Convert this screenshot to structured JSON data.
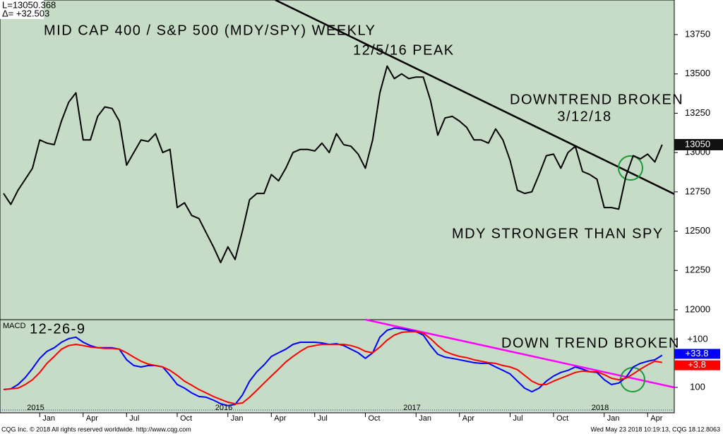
{
  "header": {
    "last": "L=13050.368",
    "delta": "Δ=  +32.503"
  },
  "footer": {
    "left": "CQG Inc. © 2018 All rights reserved worldwide. http://www.cqg.com",
    "right": "Wed May 23 2018 10:19:13, CQG 18.12.8063"
  },
  "chart_data": [
    {
      "type": "line",
      "title": "MID CAP 400 / S&P 500 (MDY/SPY) WEEKLY",
      "annotations": [
        "12/5/16 PEAK",
        "DOWNTREND BROKEN",
        "3/12/18",
        "MDY STRONGER THAN SPY"
      ],
      "ylim": [
        11937,
        13970
      ],
      "yticks": [
        12000,
        12250,
        12500,
        12750,
        13000,
        13250,
        13500,
        13750
      ],
      "grid": false,
      "series": [
        {
          "color": "#000000",
          "values": [
            12740,
            12670,
            12760,
            12830,
            12900,
            13080,
            13060,
            13050,
            13200,
            13320,
            13380,
            13080,
            13080,
            13230,
            13290,
            13280,
            13200,
            12920,
            13000,
            13080,
            13070,
            13120,
            13000,
            13020,
            12650,
            12680,
            12600,
            12580,
            12490,
            12400,
            12300,
            12400,
            12320,
            12500,
            12700,
            12740,
            12740,
            12860,
            12820,
            12900,
            13000,
            13020,
            13020,
            13010,
            13060,
            13000,
            13120,
            13050,
            13040,
            12990,
            12900,
            13080,
            13380,
            13550,
            13470,
            13500,
            13470,
            13480,
            13480,
            13330,
            13110,
            13220,
            13230,
            13200,
            13160,
            13080,
            13080,
            13060,
            13150,
            13080,
            12950,
            12760,
            12740,
            12750,
            12860,
            12980,
            12990,
            12900,
            13000,
            13040,
            12880,
            12860,
            12830,
            12650,
            12650,
            12640,
            12850,
            12980,
            12960,
            12990,
            12940,
            13050
          ]
        }
      ]
    },
    {
      "type": "line",
      "title": "MACD",
      "subtitle": "12-26-9",
      "annotations": [
        "DOWN TREND BROKEN"
      ],
      "categories": [
        null,
        null,
        null,
        null,
        null,
        "Jan",
        null,
        null,
        null,
        null,
        null,
        "Apr",
        null,
        null,
        null,
        null,
        null,
        "Jul",
        null,
        null,
        null,
        null,
        null,
        null,
        "Oct",
        null,
        null,
        null,
        null,
        null,
        null,
        "Jan",
        null,
        null,
        null,
        null,
        null,
        "Apr",
        null,
        null,
        null,
        null,
        null,
        "Jul",
        null,
        null,
        null,
        null,
        null,
        null,
        "Oct",
        null,
        null,
        null,
        null,
        null,
        null,
        "Jan",
        null,
        null,
        null,
        null,
        null,
        "Apr",
        null,
        null,
        null,
        null,
        null,
        null,
        "Jul",
        null,
        null,
        null,
        null,
        null,
        "Oct",
        null,
        null,
        null,
        null,
        null,
        null,
        "Jan",
        null,
        null,
        null,
        null,
        null,
        "Apr",
        null,
        null
      ],
      "years": [
        null,
        null,
        null,
        null,
        null,
        "2015",
        null,
        null,
        null,
        null,
        null,
        null,
        null,
        null,
        null,
        null,
        null,
        null,
        null,
        null,
        null,
        null,
        null,
        null,
        null,
        null,
        null,
        null,
        null,
        null,
        null,
        "2016",
        null,
        null,
        null,
        null,
        null,
        null,
        null,
        null,
        null,
        null,
        null,
        null,
        null,
        null,
        null,
        null,
        null,
        null,
        null,
        null,
        null,
        null,
        null,
        null,
        null,
        "2017",
        null,
        null,
        null,
        null,
        null,
        null,
        null,
        null,
        null,
        null,
        null,
        null,
        null,
        null,
        null,
        null,
        null,
        null,
        null,
        null,
        null,
        null,
        null,
        null,
        null,
        "2018",
        null,
        null,
        null,
        null,
        null,
        null,
        null,
        null
      ],
      "ylim": [
        -206,
        182
      ],
      "yticks": [
        {
          "value": 100,
          "label": "+100"
        },
        {
          "value": -100,
          "label": "100"
        }
      ],
      "series": [
        {
          "color": "#0000ff",
          "last_value_label": "+33.8",
          "values": [
            -109,
            -106,
            -88,
            -59,
            -21,
            21,
            50,
            65,
            88,
            103,
            109,
            88,
            74,
            65,
            65,
            65,
            59,
            15,
            -9,
            -15,
            -9,
            -9,
            -15,
            -50,
            -88,
            -103,
            -123,
            -138,
            -141,
            -153,
            -168,
            -176,
            -171,
            -132,
            -74,
            -35,
            -6,
            29,
            44,
            59,
            79,
            88,
            88,
            88,
            85,
            79,
            82,
            74,
            59,
            44,
            21,
            44,
            109,
            138,
            147,
            144,
            138,
            132,
            118,
            74,
            38,
            26,
            21,
            15,
            9,
            3,
            0,
            0,
            -15,
            -29,
            -44,
            -74,
            -103,
            -118,
            -103,
            -74,
            -53,
            -38,
            -29,
            -15,
            -24,
            -35,
            -38,
            -68,
            -88,
            -82,
            -59,
            -15,
            0,
            9,
            15,
            33.8
          ]
        },
        {
          "color": "#ff0000",
          "last_value_label": "+3.8",
          "values": [
            -109,
            -106,
            -103,
            -88,
            -68,
            -38,
            0,
            29,
            59,
            74,
            79,
            74,
            68,
            65,
            62,
            62,
            59,
            44,
            26,
            9,
            -3,
            -9,
            -15,
            -29,
            -50,
            -74,
            -91,
            -109,
            -123,
            -138,
            -150,
            -162,
            -168,
            -165,
            -141,
            -112,
            -82,
            -53,
            -24,
            6,
            29,
            50,
            68,
            74,
            79,
            79,
            79,
            79,
            74,
            65,
            50,
            44,
            68,
            97,
            118,
            129,
            132,
            132,
            126,
            103,
            74,
            50,
            38,
            29,
            24,
            15,
            9,
            3,
            0,
            -9,
            -15,
            -26,
            -50,
            -74,
            -88,
            -88,
            -74,
            -62,
            -50,
            -38,
            -32,
            -35,
            -35,
            -47,
            -62,
            -68,
            -62,
            -44,
            -24,
            -6,
            9,
            3.8
          ]
        }
      ]
    }
  ]
}
